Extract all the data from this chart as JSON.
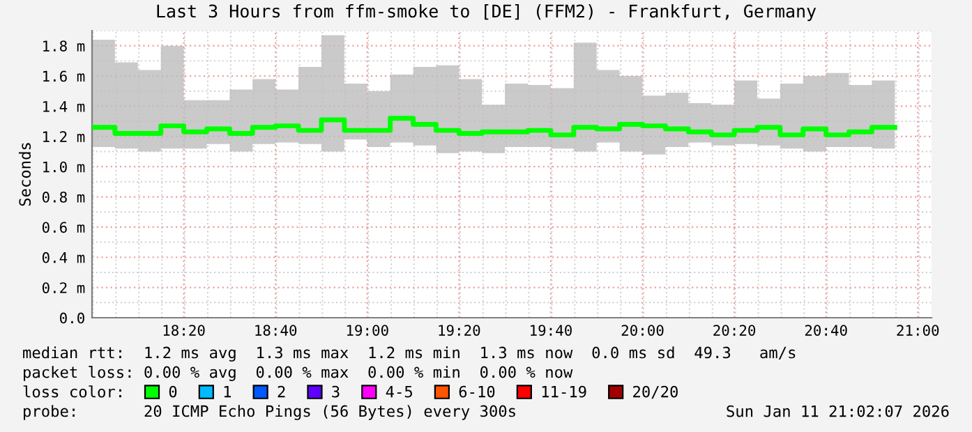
{
  "chart_data": {
    "type": "step",
    "title": "Last 3 Hours from ffm-smoke to [DE] (FFM2) - Frankfurt, Germany",
    "ylabel": "Seconds",
    "legend_title": "loss color:",
    "x": [
      18.0,
      18.0833,
      18.1667,
      18.25,
      18.3333,
      18.4167,
      18.5,
      18.5833,
      18.6667,
      18.75,
      18.8333,
      18.9167,
      19.0,
      19.0833,
      19.1667,
      19.25,
      19.3333,
      19.4167,
      19.5,
      19.5833,
      19.6667,
      19.75,
      19.8333,
      19.9167,
      20.0,
      20.0833,
      20.1667,
      20.25,
      20.3333,
      20.4167,
      20.5,
      20.5833,
      20.6667,
      20.75,
      20.8333,
      20.9167
    ],
    "series": [
      {
        "name": "0",
        "color": "#00ff00",
        "values": [
          1.26,
          1.22,
          1.22,
          1.27,
          1.23,
          1.25,
          1.22,
          1.26,
          1.27,
          1.24,
          1.31,
          1.24,
          1.24,
          1.32,
          1.28,
          1.24,
          1.22,
          1.23,
          1.23,
          1.24,
          1.21,
          1.26,
          1.25,
          1.28,
          1.27,
          1.25,
          1.23,
          1.21,
          1.24,
          1.26,
          1.21,
          1.25,
          1.21,
          1.23,
          1.26,
          1.26
        ],
        "lower": [
          1.13,
          1.12,
          1.1,
          1.12,
          1.12,
          1.15,
          1.1,
          1.15,
          1.16,
          1.15,
          1.1,
          1.18,
          1.13,
          1.16,
          1.14,
          1.09,
          1.1,
          1.09,
          1.13,
          1.13,
          1.12,
          1.1,
          1.16,
          1.1,
          1.08,
          1.13,
          1.16,
          1.14,
          1.15,
          1.14,
          1.12,
          1.1,
          1.13,
          1.13,
          1.12,
          1.12
        ],
        "upper": [
          1.84,
          1.69,
          1.64,
          1.8,
          1.44,
          1.44,
          1.51,
          1.58,
          1.51,
          1.66,
          1.87,
          1.55,
          1.5,
          1.61,
          1.66,
          1.67,
          1.58,
          1.41,
          1.55,
          1.54,
          1.52,
          1.82,
          1.64,
          1.6,
          1.47,
          1.49,
          1.42,
          1.41,
          1.57,
          1.45,
          1.55,
          1.6,
          1.62,
          1.54,
          1.57,
          1.57
        ]
      },
      {
        "name": "1",
        "color": "#00bbff",
        "values": [
          null,
          null,
          null,
          null,
          null,
          null,
          null,
          null,
          null,
          null,
          null,
          null,
          null,
          null,
          null,
          null,
          null,
          null,
          null,
          null,
          null,
          null,
          null,
          null,
          null,
          null,
          null,
          null,
          null,
          null,
          null,
          null,
          null,
          null,
          null,
          null
        ]
      },
      {
        "name": "2",
        "color": "#0059ff",
        "values": [
          null,
          null,
          null,
          null,
          null,
          null,
          null,
          null,
          null,
          null,
          null,
          null,
          null,
          null,
          null,
          null,
          null,
          null,
          null,
          null,
          null,
          null,
          null,
          null,
          null,
          null,
          null,
          null,
          null,
          null,
          null,
          null,
          null,
          null,
          null,
          null
        ]
      },
      {
        "name": "3",
        "color": "#5e00ff",
        "values": [
          null,
          null,
          null,
          null,
          null,
          null,
          null,
          null,
          null,
          null,
          null,
          null,
          null,
          null,
          null,
          null,
          null,
          null,
          null,
          null,
          null,
          null,
          null,
          null,
          null,
          null,
          null,
          null,
          null,
          null,
          null,
          null,
          null,
          null,
          null,
          null
        ]
      },
      {
        "name": "4-5",
        "color": "#ff00ff",
        "values": [
          null,
          null,
          null,
          null,
          null,
          null,
          null,
          null,
          null,
          null,
          null,
          null,
          null,
          null,
          null,
          null,
          null,
          null,
          null,
          null,
          null,
          null,
          null,
          null,
          null,
          null,
          null,
          null,
          null,
          null,
          null,
          null,
          null,
          null,
          null,
          null
        ]
      },
      {
        "name": "6-10",
        "color": "#ff5500",
        "values": [
          null,
          null,
          null,
          null,
          null,
          null,
          null,
          null,
          null,
          null,
          null,
          null,
          null,
          null,
          null,
          null,
          null,
          null,
          null,
          null,
          null,
          null,
          null,
          null,
          null,
          null,
          null,
          null,
          null,
          null,
          null,
          null,
          null,
          null,
          null,
          null
        ]
      },
      {
        "name": "11-19",
        "color": "#ff0000",
        "values": [
          null,
          null,
          null,
          null,
          null,
          null,
          null,
          null,
          null,
          null,
          null,
          null,
          null,
          null,
          null,
          null,
          null,
          null,
          null,
          null,
          null,
          null,
          null,
          null,
          null,
          null,
          null,
          null,
          null,
          null,
          null,
          null,
          null,
          null,
          null,
          null
        ]
      },
      {
        "name": "20/20",
        "color": "#a10000",
        "values": [
          null,
          null,
          null,
          null,
          null,
          null,
          null,
          null,
          null,
          null,
          null,
          null,
          null,
          null,
          null,
          null,
          null,
          null,
          null,
          null,
          null,
          null,
          null,
          null,
          null,
          null,
          null,
          null,
          null,
          null,
          null,
          null,
          null,
          null,
          null,
          null
        ]
      }
    ],
    "xlim": [
      18.0,
      21.05
    ],
    "ylim": [
      0,
      1.9
    ],
    "xticks": [
      {
        "value": 18.3333,
        "label": "18:20"
      },
      {
        "value": 18.6667,
        "label": "18:40"
      },
      {
        "value": 19.0,
        "label": "19:00"
      },
      {
        "value": 19.3333,
        "label": "19:20"
      },
      {
        "value": 19.6667,
        "label": "19:40"
      },
      {
        "value": 20.0,
        "label": "20:00"
      },
      {
        "value": 20.3333,
        "label": "20:20"
      },
      {
        "value": 20.6667,
        "label": "20:40"
      },
      {
        "value": 21.0,
        "label": "21:00"
      }
    ],
    "yticks": [
      {
        "value": 0,
        "label": "0.0"
      },
      {
        "value": 0.2,
        "label": "0.2 m"
      },
      {
        "value": 0.4,
        "label": "0.4 m"
      },
      {
        "value": 0.6,
        "label": "0.6 m"
      },
      {
        "value": 0.8,
        "label": "0.8 m"
      },
      {
        "value": 1.0,
        "label": "1.0 m"
      },
      {
        "value": 1.2,
        "label": "1.2 m"
      },
      {
        "value": 1.4,
        "label": "1.4 m"
      },
      {
        "value": 1.6,
        "label": "1.6 m"
      },
      {
        "value": 1.8,
        "label": "1.8 m"
      }
    ],
    "grid": true,
    "legend": "bottom",
    "annotations": [
      "median rtt:  1.2 ms avg  1.3 ms max  1.2 ms min  1.3 ms now  0.0 ms sd  49.3   am/s",
      "packet loss: 0.00 % avg  0.00 % max  0.00 % min  0.00 % now",
      "probe:       20 ICMP Echo Pings (56 Bytes) every 300s",
      "Sun Jan 11 21:02:07 2026"
    ]
  }
}
